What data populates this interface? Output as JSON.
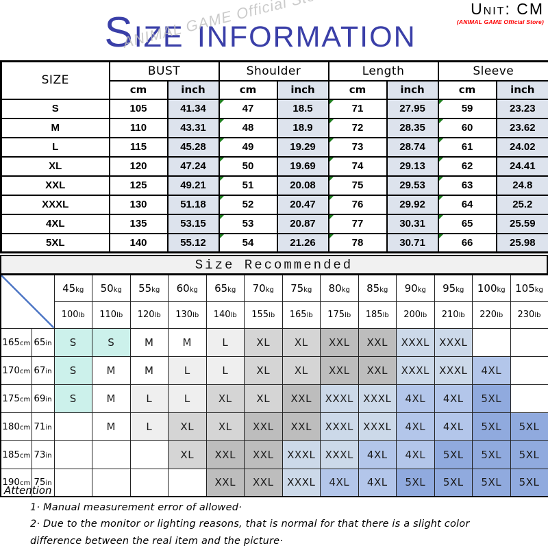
{
  "unit_label": "Unit: CM",
  "store_label": "(ANIMAL GAME Official Store)",
  "watermark": "ANIMAL GAME Official Store",
  "title": "Size information",
  "colors": {
    "title_blue": "#3a3fa8",
    "store_red": "#fe0000",
    "inch_bg": "#dde3ed",
    "banner_bg": "#f1f1f1",
    "marker_green": "#1e7e1e",
    "diagonal_blue": "#4a74c4",
    "watermark_gray": "#bfbfbf"
  },
  "size_table": {
    "header": "SIZE",
    "groups": [
      "BUST",
      "Shoulder",
      "Length",
      "Sleeve"
    ],
    "sub_headers": [
      "cm",
      "inch",
      "cm",
      "inch",
      "cm",
      "inch",
      "cm",
      "inch"
    ],
    "rows": [
      [
        "S",
        "105",
        "41.34",
        "47",
        "18.5",
        "71",
        "27.95",
        "59",
        "23.23"
      ],
      [
        "M",
        "110",
        "43.31",
        "48",
        "18.9",
        "72",
        "28.35",
        "60",
        "23.62"
      ],
      [
        "L",
        "115",
        "45.28",
        "49",
        "19.29",
        "73",
        "28.74",
        "61",
        "24.02"
      ],
      [
        "XL",
        "120",
        "47.24",
        "50",
        "19.69",
        "74",
        "29.13",
        "62",
        "24.41"
      ],
      [
        "XXL",
        "125",
        "49.21",
        "51",
        "20.08",
        "75",
        "29.53",
        "63",
        "24.8"
      ],
      [
        "XXXL",
        "130",
        "51.18",
        "52",
        "20.47",
        "76",
        "29.92",
        "64",
        "25.2"
      ],
      [
        "4XL",
        "135",
        "53.15",
        "53",
        "20.87",
        "77",
        "30.31",
        "65",
        "25.59"
      ],
      [
        "5XL",
        "140",
        "55.12",
        "54",
        "21.26",
        "78",
        "30.71",
        "66",
        "25.98"
      ]
    ]
  },
  "recommend_table": {
    "banner": "Size Recommended",
    "weights_kg": [
      "45kg",
      "50kg",
      "55kg",
      "60kg",
      "65kg",
      "70kg",
      "75kg",
      "80kg",
      "85kg",
      "90kg",
      "95kg",
      "100kg",
      "105kg"
    ],
    "weights_lb": [
      "100lb",
      "110lb",
      "120lb",
      "130lb",
      "140lb",
      "155lb",
      "165lb",
      "175lb",
      "185lb",
      "200lb",
      "210lb",
      "220lb",
      "230lb"
    ],
    "rows": [
      {
        "height_cm": "165cm",
        "height_in": "65in",
        "cells": [
          "S",
          "S",
          "M",
          "M",
          "L",
          "XL",
          "XL",
          "XXL",
          "XXL",
          "XXXL",
          "XXXL",
          "",
          ""
        ]
      },
      {
        "height_cm": "170cm",
        "height_in": "67in",
        "cells": [
          "S",
          "M",
          "M",
          "L",
          "L",
          "XL",
          "XL",
          "XXL",
          "XXL",
          "XXXL",
          "XXXL",
          "4XL",
          ""
        ]
      },
      {
        "height_cm": "175cm",
        "height_in": "69in",
        "cells": [
          "S",
          "M",
          "L",
          "L",
          "XL",
          "XL",
          "XXL",
          "XXXL",
          "XXXL",
          "4XL",
          "4XL",
          "5XL",
          ""
        ]
      },
      {
        "height_cm": "180cm",
        "height_in": "71in",
        "cells": [
          "",
          "M",
          "L",
          "XL",
          "XL",
          "XXL",
          "XXL",
          "XXXL",
          "XXXL",
          "4XL",
          "4XL",
          "5XL",
          "5XL"
        ]
      },
      {
        "height_cm": "185cm",
        "height_in": "73in",
        "cells": [
          "",
          "",
          "",
          "XL",
          "XXL",
          "XXL",
          "XXXL",
          "XXXL",
          "4XL",
          "4XL",
          "5XL",
          "5XL",
          "5XL"
        ]
      },
      {
        "height_cm": "190cm",
        "height_in": "75in",
        "cells": [
          "",
          "",
          "",
          "",
          "XXL",
          "XXL",
          "XXXL",
          "4XL",
          "4XL",
          "5XL",
          "5XL",
          "5XL",
          "5XL"
        ]
      }
    ],
    "size_colors": {
      "S": "#ccf1eb",
      "M": "#ffffff",
      "L": "#efefef",
      "XL": "#d5d5d5",
      "XXL": "#bdbdbd",
      "XXXL": "#ccd9e9",
      "4XL": "#b3c6ea",
      "5XL": "#90aade"
    }
  },
  "attention": {
    "heading": "Attention",
    "lines": [
      "1· Manual measurement error of allowed·",
      "2·  Due to the monitor or lighting reasons, that is normal for that there is a slight color",
      "difference between the real item and the picture·"
    ]
  }
}
